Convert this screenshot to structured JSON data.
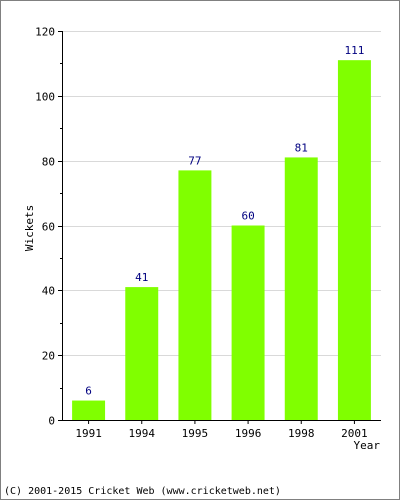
{
  "chart_data": {
    "type": "bar",
    "categories": [
      "1991",
      "1994",
      "1995",
      "1996",
      "1998",
      "2001"
    ],
    "values": [
      6,
      41,
      77,
      60,
      81,
      111
    ],
    "data_labels": [
      "6",
      "41",
      "77",
      "60",
      "81",
      "111"
    ],
    "title": "",
    "xlabel": "Year",
    "ylabel": "Wickets",
    "ylim": [
      0,
      120
    ],
    "yticks": [
      0,
      20,
      40,
      60,
      80,
      100,
      120
    ],
    "grid": "horizontal",
    "legend": "none",
    "colors": {
      "bar": "#80ff00",
      "data_label": "#000080",
      "grid": "#d9d9d9",
      "axis": "#000000",
      "frame": "#808080"
    }
  },
  "footer": {
    "copyright": "(C) 2001-2015 Cricket Web (www.cricketweb.net)"
  }
}
